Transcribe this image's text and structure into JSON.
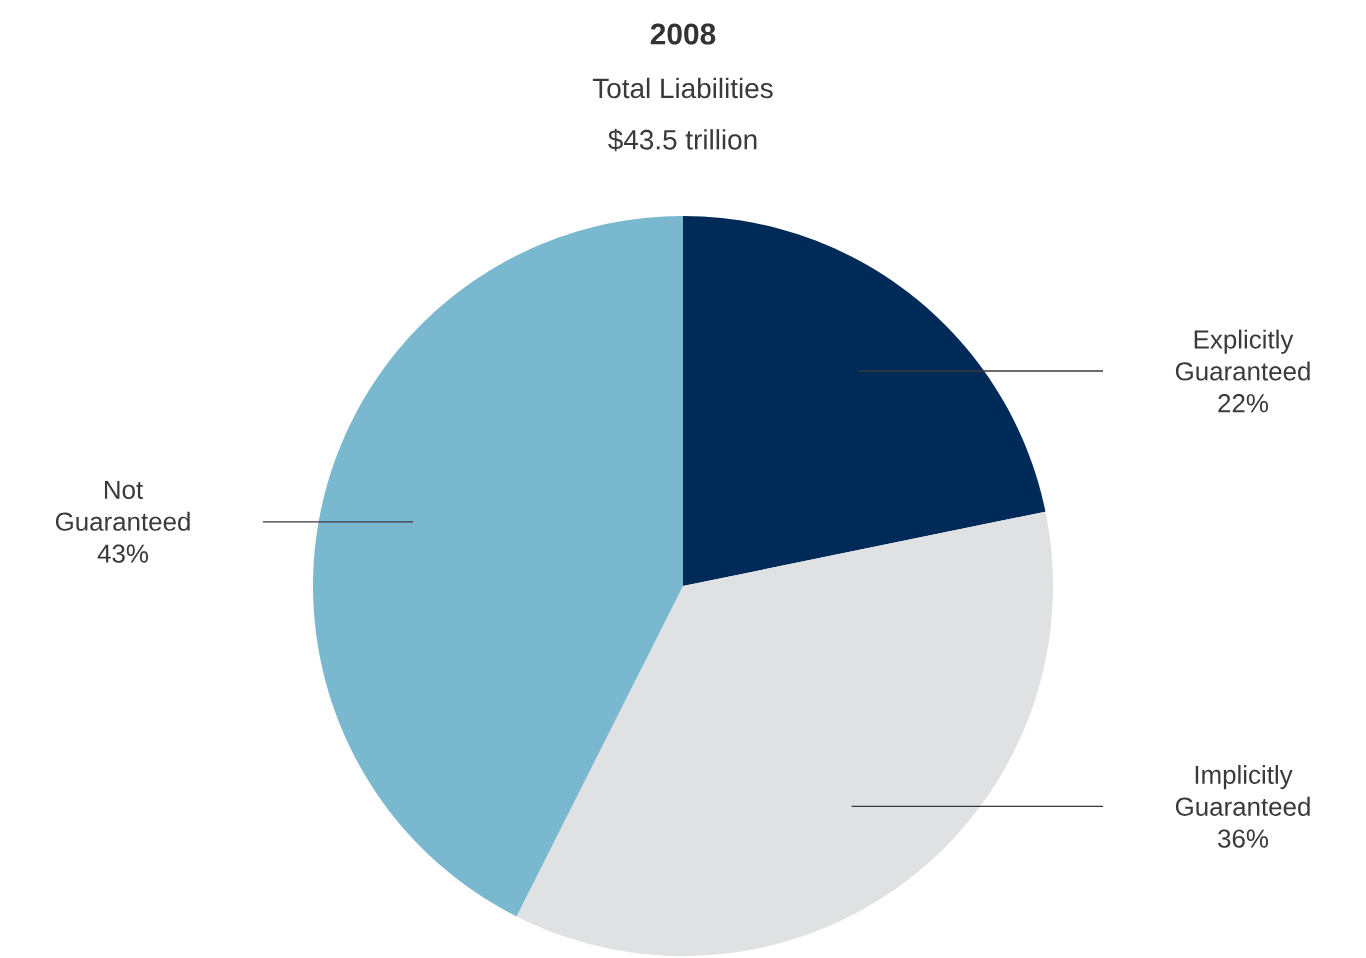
{
  "chart_data": {
    "type": "pie",
    "title": "2008",
    "subtitle": "Total Liabilities",
    "annotations": [
      "$43.5 trillion"
    ],
    "categories": [
      "Explicitly Guaranteed",
      "Implicitly Guaranteed",
      "Not Guaranteed"
    ],
    "values": [
      22,
      36,
      43
    ],
    "value_labels": [
      "22%",
      "36%",
      "43%"
    ],
    "colors": [
      "#002a57",
      "#e0e1e3",
      "#7ab8d0"
    ]
  }
}
